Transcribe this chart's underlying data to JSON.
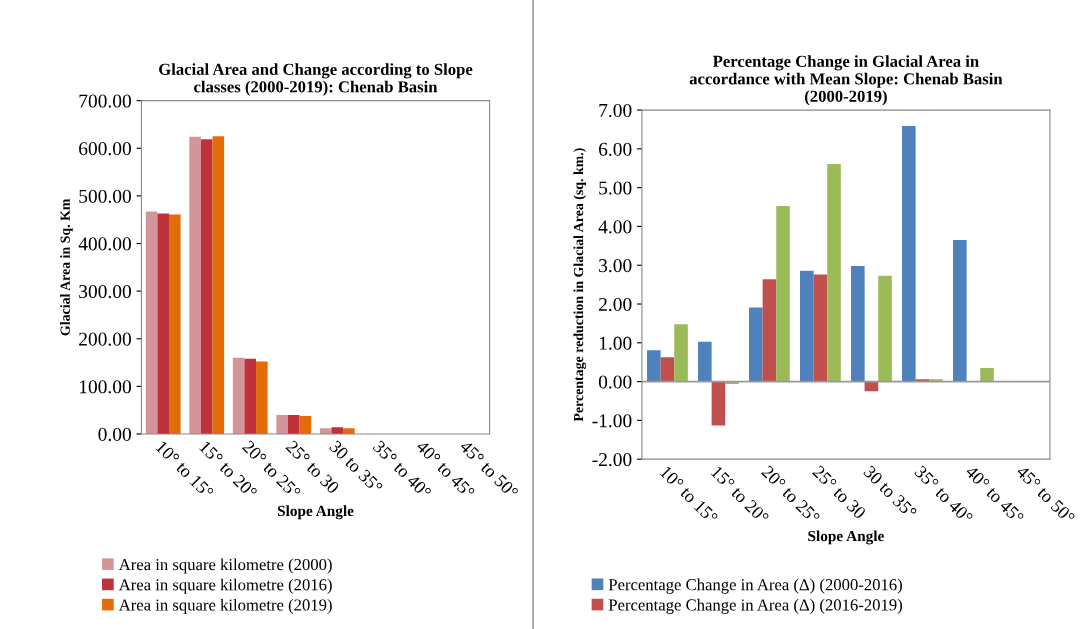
{
  "chart_data": [
    {
      "type": "bar",
      "title": "Glacial Area and Change according to Slope\nclasses (2000-2019): Chenab Basin",
      "xlabel": "Slope Angle",
      "ylabel": "Glacial Area in Sq. Km",
      "categories": [
        "10° to 15°",
        "15° to 20°",
        "20° to 25°",
        "25° to 30",
        "30 to 35°",
        "35° to 40°",
        "40° to 45°",
        "45° to 50°"
      ],
      "series": [
        {
          "name": "Area in square kilometre (2000)",
          "color": "#d4959a",
          "values": [
            467,
            624,
            160,
            40,
            12,
            0,
            0,
            0
          ]
        },
        {
          "name": "Area in square kilometre (2016)",
          "color": "#c0323a",
          "values": [
            463,
            619,
            158,
            40,
            14,
            0,
            0,
            0
          ]
        },
        {
          "name": "Area in square kilometre (2019)",
          "color": "#e36c0a",
          "values": [
            461,
            625,
            152,
            38,
            12,
            0,
            0,
            0
          ]
        }
      ],
      "ylim": [
        0,
        700
      ],
      "yticks": [
        {
          "value": 0,
          "label": "0.00"
        },
        {
          "value": 100,
          "label": "100.00"
        },
        {
          "value": 200,
          "label": "200.00"
        },
        {
          "value": 300,
          "label": "300.00"
        },
        {
          "value": 400,
          "label": "400.00"
        },
        {
          "value": 500,
          "label": "500.00"
        },
        {
          "value": 600,
          "label": "600.00"
        },
        {
          "value": 700,
          "label": "700.00"
        }
      ],
      "legend": "bottom"
    },
    {
      "type": "bar",
      "title": "Percentage Change in Glacial Area in\naccordance with Mean Slope: Chenab Basin\n(2000-2019)",
      "xlabel": "Slope Angle",
      "ylabel": "Percentage reduction in Glacial Area (sq. km.)",
      "categories": [
        "10° to 15°",
        "15° to 20°",
        "20° to 25°",
        "25° to 30",
        "30 to 35°",
        "35° to 40°",
        "40° to 45°",
        "45° to 50°"
      ],
      "series": [
        {
          "name": "Percentage Change in Area (Δ) (2000-2016)",
          "color": "#4f81bd",
          "values": [
            0.81,
            1.03,
            1.91,
            2.86,
            2.98,
            6.59,
            3.65,
            0
          ]
        },
        {
          "name": "Percentage Change in Area (Δ) (2016-2019)",
          "color": "#c0504d",
          "values": [
            0.63,
            -1.13,
            2.64,
            2.76,
            -0.25,
            0.06,
            0,
            0
          ]
        },
        {
          "color": "#9bbb59",
          "values": [
            1.48,
            -0.06,
            4.53,
            5.61,
            2.73,
            0.06,
            0.35,
            0
          ]
        }
      ],
      "ylim": [
        -2,
        7
      ],
      "yticks": [
        {
          "value": -2,
          "label": "-2.00"
        },
        {
          "value": -1,
          "label": "-1.00"
        },
        {
          "value": 0,
          "label": "0.00"
        },
        {
          "value": 1,
          "label": "1.00"
        },
        {
          "value": 2,
          "label": "2.00"
        },
        {
          "value": 3,
          "label": "3.00"
        },
        {
          "value": 4,
          "label": "4.00"
        },
        {
          "value": 5,
          "label": "5.00"
        },
        {
          "value": 6,
          "label": "6.00"
        },
        {
          "value": 7,
          "label": "7.00"
        }
      ],
      "ref_lines": [
        {
          "axis": "y",
          "value": 0,
          "color": "#999999"
        }
      ],
      "legend": "bottom"
    }
  ]
}
